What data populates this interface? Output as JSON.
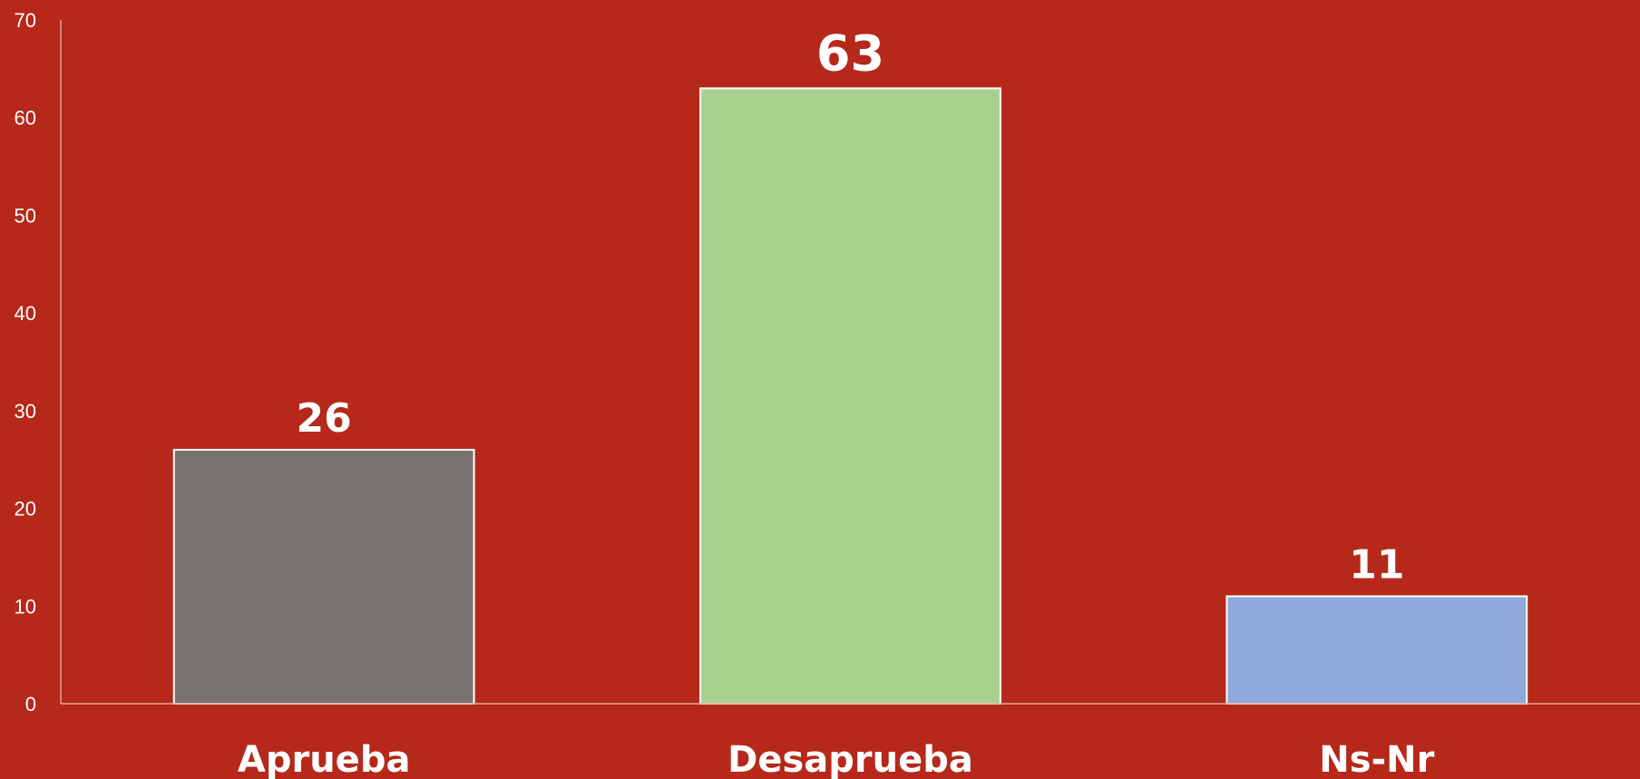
{
  "chart_data": {
    "type": "bar",
    "categories": [
      "Aprueba",
      "Desaprueba",
      "Ns-Nr"
    ],
    "values": [
      26,
      63,
      11
    ],
    "data_labels": [
      "26",
      "63",
      "11"
    ],
    "bar_colors": [
      "#777371",
      "#a9d18e",
      "#8faadc"
    ],
    "background_color": "#b5281a",
    "title": "",
    "xlabel": "",
    "ylabel": "",
    "ylim": [
      0,
      70
    ],
    "yticks": [
      "0",
      "10",
      "20",
      "30",
      "40",
      "50",
      "60",
      "70"
    ],
    "grid": false,
    "legend": "none"
  }
}
